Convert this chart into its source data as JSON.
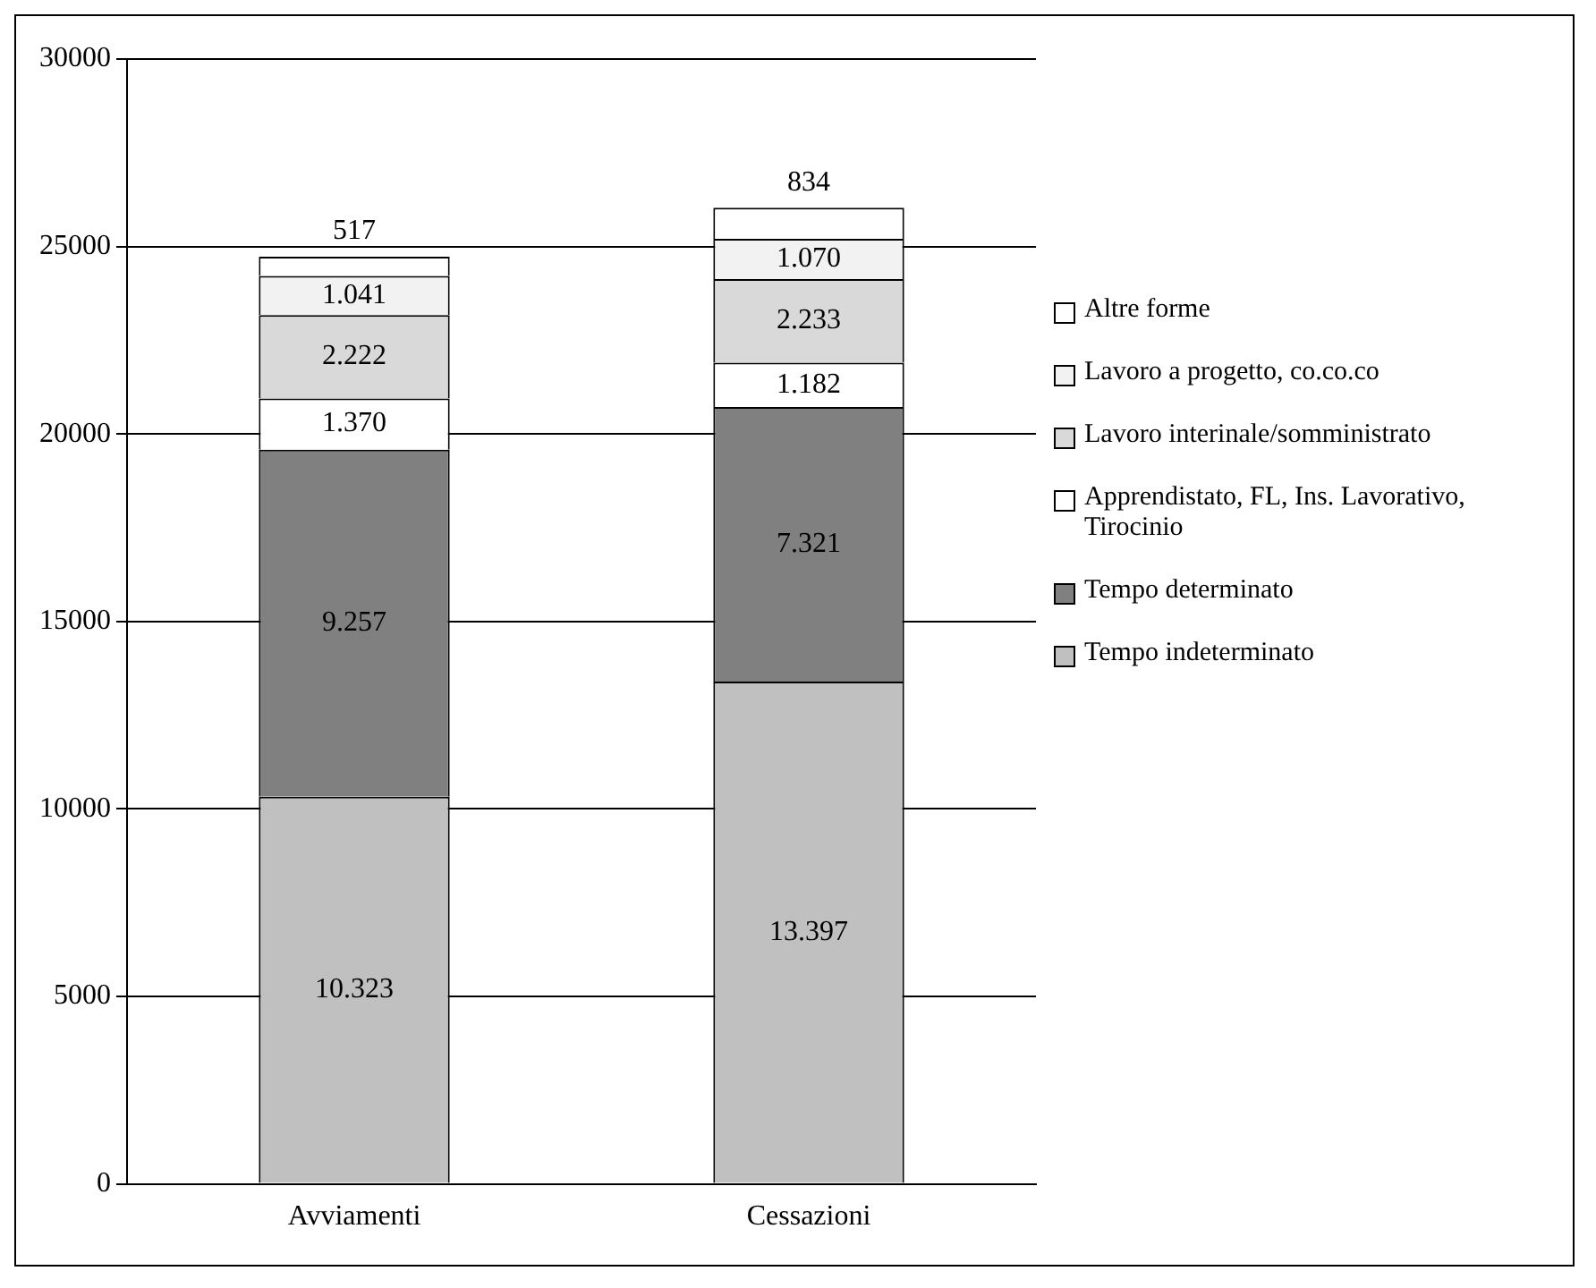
{
  "chart_data": {
    "type": "bar",
    "stacked": true,
    "categories": [
      "Avviamenti",
      "Cessazioni"
    ],
    "series": [
      {
        "name": "Tempo indeterminato",
        "color": "#c0c0c0",
        "values": [
          10323,
          13397
        ],
        "value_labels": [
          "10.323",
          "13.397"
        ]
      },
      {
        "name": "Tempo determinato",
        "color": "#808080",
        "values": [
          9257,
          7321
        ],
        "value_labels": [
          "9.257",
          "7.321"
        ]
      },
      {
        "name": "Apprendistato, FL, Ins. Lavorativo, Tirocinio",
        "color": "#ffffff",
        "values": [
          1370,
          1182
        ],
        "value_labels": [
          "1.370",
          "1.182"
        ]
      },
      {
        "name": "Lavoro interinale/somministrato",
        "color": "#d9d9d9",
        "values": [
          2222,
          2233
        ],
        "value_labels": [
          "2.222",
          "2.233"
        ]
      },
      {
        "name": "Lavoro a progetto, co.co.co",
        "color": "#f2f2f2",
        "values": [
          1041,
          1070
        ],
        "value_labels": [
          "1.041",
          "1.070"
        ]
      },
      {
        "name": "Altre forme",
        "color": "#ffffff",
        "values": [
          517,
          834
        ],
        "value_labels": [
          "517",
          "834"
        ]
      }
    ],
    "ylim": [
      0,
      30000
    ],
    "yticks": [
      0,
      5000,
      10000,
      15000,
      20000,
      25000,
      30000
    ],
    "grid": "y",
    "legend": "right"
  }
}
